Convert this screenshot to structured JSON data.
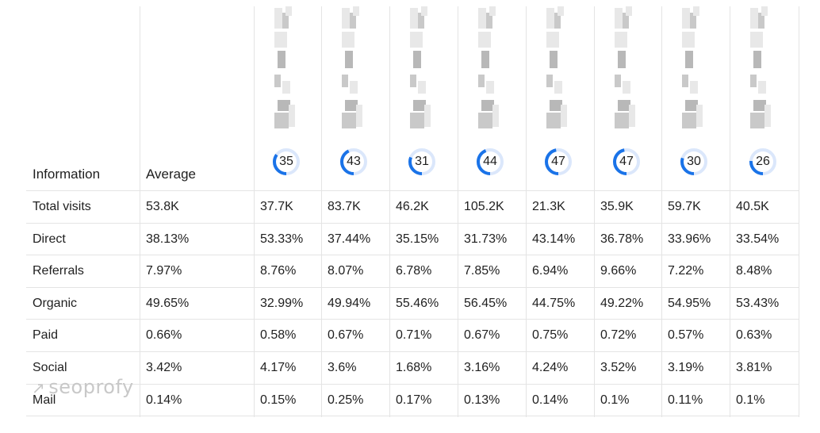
{
  "header": {
    "info_label": "Information",
    "avg_label": "Average"
  },
  "sites": [
    {
      "score": 35
    },
    {
      "score": 43
    },
    {
      "score": 31
    },
    {
      "score": 44
    },
    {
      "score": 47
    },
    {
      "score": 47
    },
    {
      "score": 30
    },
    {
      "score": 26
    }
  ],
  "rows": [
    {
      "label": "Total visits",
      "average": "53.8K",
      "values": [
        "37.7K",
        "83.7K",
        "46.2K",
        "105.2K",
        "21.3K",
        "35.9K",
        "59.7K",
        "40.5K"
      ]
    },
    {
      "label": "Direct",
      "average": "38.13%",
      "values": [
        "53.33%",
        "37.44%",
        "35.15%",
        "31.73%",
        "43.14%",
        "36.78%",
        "33.96%",
        "33.54%"
      ]
    },
    {
      "label": "Referrals",
      "average": "7.97%",
      "values": [
        "8.76%",
        "8.07%",
        "6.78%",
        "7.85%",
        "6.94%",
        "9.66%",
        "7.22%",
        "8.48%"
      ]
    },
    {
      "label": "Organic",
      "average": "49.65%",
      "values": [
        "32.99%",
        "49.94%",
        "55.46%",
        "56.45%",
        "44.75%",
        "49.22%",
        "54.95%",
        "53.43%"
      ]
    },
    {
      "label": "Paid",
      "average": "0.66%",
      "values": [
        "0.58%",
        "0.67%",
        "0.71%",
        "0.67%",
        "0.75%",
        "0.72%",
        "0.57%",
        "0.63%"
      ]
    },
    {
      "label": "Social",
      "average": "3.42%",
      "values": [
        "4.17%",
        "3.6%",
        "1.68%",
        "3.16%",
        "4.24%",
        "3.52%",
        "3.19%",
        "3.81%"
      ]
    },
    {
      "label": "Mail",
      "average": "0.14%",
      "values": [
        "0.15%",
        "0.25%",
        "0.17%",
        "0.13%",
        "0.14%",
        "0.1%",
        "0.11%",
        "0.1%"
      ]
    }
  ],
  "watermark": {
    "text": "seoprofy",
    "icon": "arrow-up-right-icon"
  },
  "colors": {
    "ring_fg": "#1a73e8",
    "ring_bg": "#dbe7fb",
    "grid": "#e4e4e4"
  }
}
